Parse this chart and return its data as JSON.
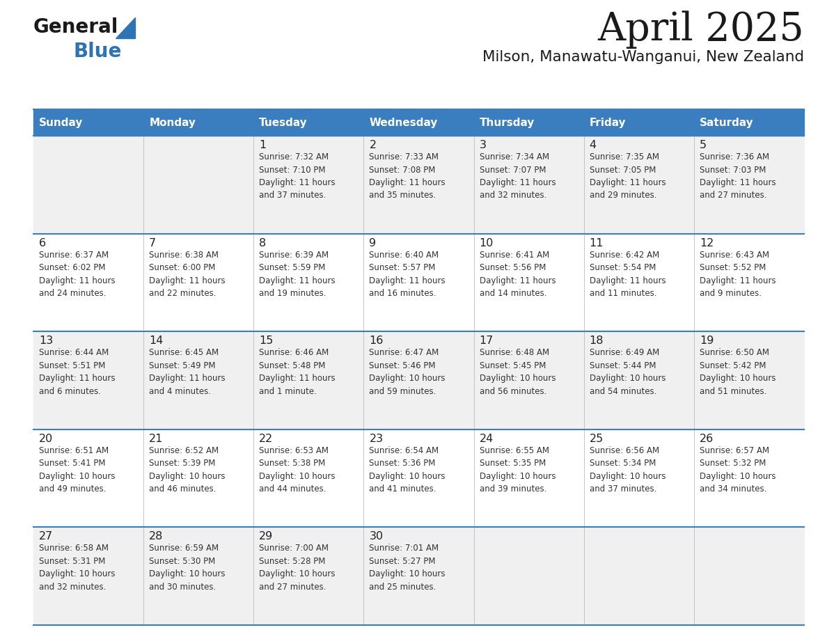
{
  "title": "April 2025",
  "subtitle": "Milson, Manawatu-Wanganui, New Zealand",
  "header_bg": "#3A7EBF",
  "header_text": "#FFFFFF",
  "row_bg_odd": "#F0F0F0",
  "row_bg_even": "#FFFFFF",
  "separator_color": "#3A7EBF",
  "days_of_week": [
    "Sunday",
    "Monday",
    "Tuesday",
    "Wednesday",
    "Thursday",
    "Friday",
    "Saturday"
  ],
  "calendar": [
    [
      {
        "day": "",
        "sunrise": "",
        "sunset": "",
        "daylight": ""
      },
      {
        "day": "",
        "sunrise": "",
        "sunset": "",
        "daylight": ""
      },
      {
        "day": "1",
        "sunrise": "7:32 AM",
        "sunset": "7:10 PM",
        "daylight": "11 hours\nand 37 minutes."
      },
      {
        "day": "2",
        "sunrise": "7:33 AM",
        "sunset": "7:08 PM",
        "daylight": "11 hours\nand 35 minutes."
      },
      {
        "day": "3",
        "sunrise": "7:34 AM",
        "sunset": "7:07 PM",
        "daylight": "11 hours\nand 32 minutes."
      },
      {
        "day": "4",
        "sunrise": "7:35 AM",
        "sunset": "7:05 PM",
        "daylight": "11 hours\nand 29 minutes."
      },
      {
        "day": "5",
        "sunrise": "7:36 AM",
        "sunset": "7:03 PM",
        "daylight": "11 hours\nand 27 minutes."
      }
    ],
    [
      {
        "day": "6",
        "sunrise": "6:37 AM",
        "sunset": "6:02 PM",
        "daylight": "11 hours\nand 24 minutes."
      },
      {
        "day": "7",
        "sunrise": "6:38 AM",
        "sunset": "6:00 PM",
        "daylight": "11 hours\nand 22 minutes."
      },
      {
        "day": "8",
        "sunrise": "6:39 AM",
        "sunset": "5:59 PM",
        "daylight": "11 hours\nand 19 minutes."
      },
      {
        "day": "9",
        "sunrise": "6:40 AM",
        "sunset": "5:57 PM",
        "daylight": "11 hours\nand 16 minutes."
      },
      {
        "day": "10",
        "sunrise": "6:41 AM",
        "sunset": "5:56 PM",
        "daylight": "11 hours\nand 14 minutes."
      },
      {
        "day": "11",
        "sunrise": "6:42 AM",
        "sunset": "5:54 PM",
        "daylight": "11 hours\nand 11 minutes."
      },
      {
        "day": "12",
        "sunrise": "6:43 AM",
        "sunset": "5:52 PM",
        "daylight": "11 hours\nand 9 minutes."
      }
    ],
    [
      {
        "day": "13",
        "sunrise": "6:44 AM",
        "sunset": "5:51 PM",
        "daylight": "11 hours\nand 6 minutes."
      },
      {
        "day": "14",
        "sunrise": "6:45 AM",
        "sunset": "5:49 PM",
        "daylight": "11 hours\nand 4 minutes."
      },
      {
        "day": "15",
        "sunrise": "6:46 AM",
        "sunset": "5:48 PM",
        "daylight": "11 hours\nand 1 minute."
      },
      {
        "day": "16",
        "sunrise": "6:47 AM",
        "sunset": "5:46 PM",
        "daylight": "10 hours\nand 59 minutes."
      },
      {
        "day": "17",
        "sunrise": "6:48 AM",
        "sunset": "5:45 PM",
        "daylight": "10 hours\nand 56 minutes."
      },
      {
        "day": "18",
        "sunrise": "6:49 AM",
        "sunset": "5:44 PM",
        "daylight": "10 hours\nand 54 minutes."
      },
      {
        "day": "19",
        "sunrise": "6:50 AM",
        "sunset": "5:42 PM",
        "daylight": "10 hours\nand 51 minutes."
      }
    ],
    [
      {
        "day": "20",
        "sunrise": "6:51 AM",
        "sunset": "5:41 PM",
        "daylight": "10 hours\nand 49 minutes."
      },
      {
        "day": "21",
        "sunrise": "6:52 AM",
        "sunset": "5:39 PM",
        "daylight": "10 hours\nand 46 minutes."
      },
      {
        "day": "22",
        "sunrise": "6:53 AM",
        "sunset": "5:38 PM",
        "daylight": "10 hours\nand 44 minutes."
      },
      {
        "day": "23",
        "sunrise": "6:54 AM",
        "sunset": "5:36 PM",
        "daylight": "10 hours\nand 41 minutes."
      },
      {
        "day": "24",
        "sunrise": "6:55 AM",
        "sunset": "5:35 PM",
        "daylight": "10 hours\nand 39 minutes."
      },
      {
        "day": "25",
        "sunrise": "6:56 AM",
        "sunset": "5:34 PM",
        "daylight": "10 hours\nand 37 minutes."
      },
      {
        "day": "26",
        "sunrise": "6:57 AM",
        "sunset": "5:32 PM",
        "daylight": "10 hours\nand 34 minutes."
      }
    ],
    [
      {
        "day": "27",
        "sunrise": "6:58 AM",
        "sunset": "5:31 PM",
        "daylight": "10 hours\nand 32 minutes."
      },
      {
        "day": "28",
        "sunrise": "6:59 AM",
        "sunset": "5:30 PM",
        "daylight": "10 hours\nand 30 minutes."
      },
      {
        "day": "29",
        "sunrise": "7:00 AM",
        "sunset": "5:28 PM",
        "daylight": "10 hours\nand 27 minutes."
      },
      {
        "day": "30",
        "sunrise": "7:01 AM",
        "sunset": "5:27 PM",
        "daylight": "10 hours\nand 25 minutes."
      },
      {
        "day": "",
        "sunrise": "",
        "sunset": "",
        "daylight": ""
      },
      {
        "day": "",
        "sunrise": "",
        "sunset": "",
        "daylight": ""
      },
      {
        "day": "",
        "sunrise": "",
        "sunset": "",
        "daylight": ""
      }
    ]
  ]
}
